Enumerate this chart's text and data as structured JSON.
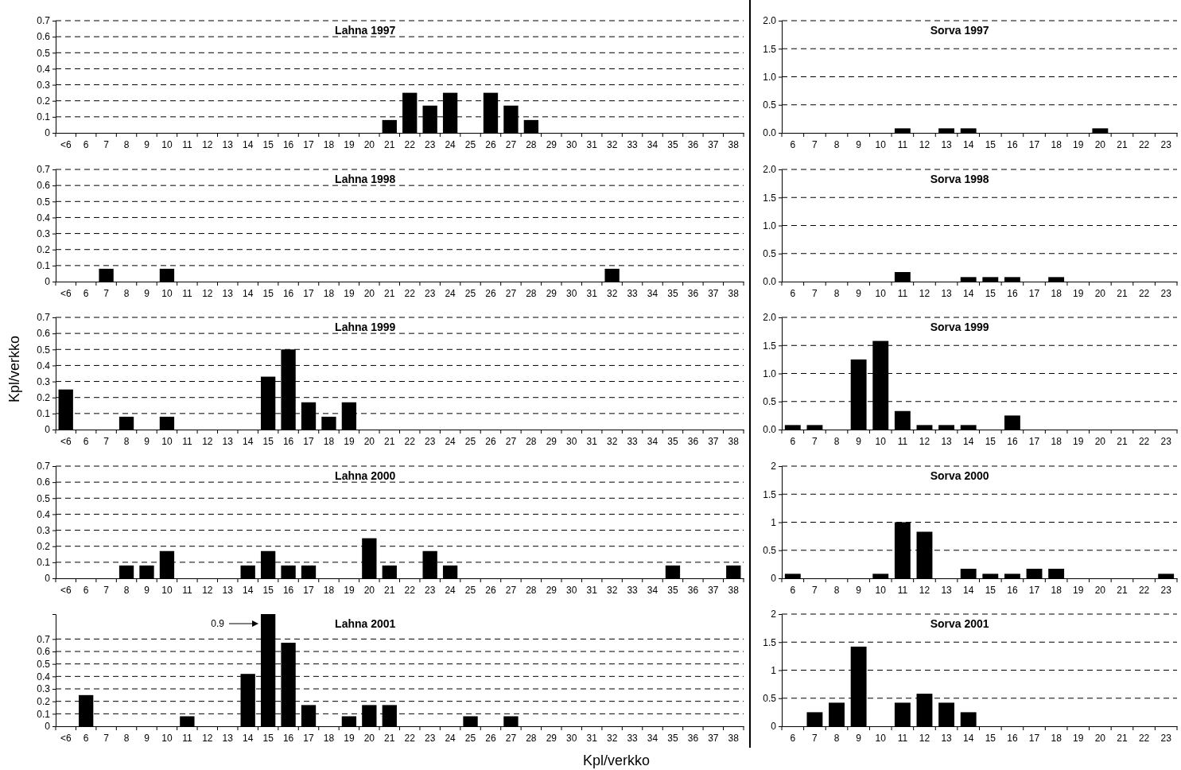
{
  "chart_data": [
    {
      "type": "bar",
      "title": "Lahna 1997",
      "categories": [
        "<6",
        "6",
        "7",
        "8",
        "9",
        "10",
        "11",
        "12",
        "13",
        "14",
        "15",
        "16",
        "17",
        "18",
        "19",
        "20",
        "21",
        "22",
        "23",
        "24",
        "25",
        "26",
        "27",
        "28",
        "29",
        "30",
        "31",
        "32",
        "33",
        "34",
        "35",
        "36",
        "37",
        "38"
      ],
      "values": [
        0,
        0,
        0,
        0,
        0,
        0,
        0,
        0,
        0,
        0,
        0,
        0,
        0,
        0,
        0,
        0,
        0.08,
        0.25,
        0.17,
        0.25,
        0,
        0.25,
        0.17,
        0.08,
        0,
        0,
        0,
        0,
        0,
        0,
        0,
        0,
        0,
        0
      ],
      "color": "#000000",
      "ylim": [
        0,
        0.7
      ],
      "yticks": [
        0,
        0.1,
        0.2,
        0.3,
        0.4,
        0.5,
        0.6,
        0.7
      ],
      "grid": "y"
    },
    {
      "type": "bar",
      "title": "Sorva 1997",
      "categories": [
        "6",
        "7",
        "8",
        "9",
        "10",
        "11",
        "12",
        "13",
        "14",
        "15",
        "16",
        "17",
        "18",
        "19",
        "20",
        "21",
        "22",
        "23"
      ],
      "values": [
        0,
        0,
        0,
        0,
        0,
        0.08,
        0,
        0.08,
        0.08,
        0,
        0,
        0,
        0,
        0,
        0.08,
        0,
        0,
        0
      ],
      "color": "#000000",
      "ylim": [
        0,
        2
      ],
      "yticks": [
        {
          "value": 0,
          "label": "0.0"
        },
        {
          "value": 0.5,
          "label": "0.5"
        },
        {
          "value": 1,
          "label": "1.0"
        },
        {
          "value": 1.5,
          "label": "1.5"
        },
        {
          "value": 2,
          "label": "2.0"
        }
      ],
      "grid": "y"
    },
    {
      "type": "bar",
      "title": "Lahna 1998",
      "categories": [
        "<6",
        "6",
        "7",
        "8",
        "9",
        "10",
        "11",
        "12",
        "13",
        "14",
        "15",
        "16",
        "17",
        "18",
        "19",
        "20",
        "21",
        "22",
        "23",
        "24",
        "25",
        "26",
        "27",
        "28",
        "29",
        "30",
        "31",
        "32",
        "33",
        "34",
        "35",
        "36",
        "37",
        "38"
      ],
      "values": [
        0,
        0,
        0.08,
        0,
        0,
        0.08,
        0,
        0,
        0,
        0,
        0,
        0,
        0,
        0,
        0,
        0,
        0,
        0,
        0,
        0,
        0,
        0,
        0,
        0,
        0,
        0,
        0,
        0.08,
        0,
        0,
        0,
        0,
        0,
        0
      ],
      "color": "#000000",
      "ylim": [
        0,
        0.7
      ],
      "yticks": [
        0,
        0.1,
        0.2,
        0.3,
        0.4,
        0.5,
        0.6,
        0.7
      ],
      "grid": "y"
    },
    {
      "type": "bar",
      "title": "Sorva 1998",
      "categories": [
        "6",
        "7",
        "8",
        "9",
        "10",
        "11",
        "12",
        "13",
        "14",
        "15",
        "16",
        "17",
        "18",
        "19",
        "20",
        "21",
        "22",
        "23"
      ],
      "values": [
        0,
        0,
        0,
        0,
        0,
        0.17,
        0,
        0,
        0.08,
        0.08,
        0.08,
        0,
        0.08,
        0,
        0,
        0,
        0,
        0
      ],
      "color": "#000000",
      "ylim": [
        0,
        2
      ],
      "yticks": [
        {
          "value": 0,
          "label": "0.0"
        },
        {
          "value": 0.5,
          "label": "0.5"
        },
        {
          "value": 1,
          "label": "1.0"
        },
        {
          "value": 1.5,
          "label": "1.5"
        },
        {
          "value": 2,
          "label": "2.0"
        }
      ],
      "grid": "y"
    },
    {
      "type": "bar",
      "title": "Lahna 1999",
      "ylabel": "Kpl/verkko",
      "categories": [
        "<6",
        "6",
        "7",
        "8",
        "9",
        "10",
        "11",
        "12",
        "13",
        "14",
        "15",
        "16",
        "17",
        "18",
        "19",
        "20",
        "21",
        "22",
        "23",
        "24",
        "25",
        "26",
        "27",
        "28",
        "29",
        "30",
        "31",
        "32",
        "33",
        "34",
        "35",
        "36",
        "37",
        "38"
      ],
      "values": [
        0.25,
        0,
        0,
        0.08,
        0,
        0.08,
        0,
        0,
        0,
        0,
        0.33,
        0.5,
        0.17,
        0.08,
        0.17,
        0,
        0,
        0,
        0,
        0,
        0,
        0,
        0,
        0,
        0,
        0,
        0,
        0,
        0,
        0,
        0,
        0,
        0,
        0
      ],
      "color": "#000000",
      "ylim": [
        0,
        0.7
      ],
      "yticks": [
        0,
        0.1,
        0.2,
        0.3,
        0.4,
        0.5,
        0.6,
        0.7
      ],
      "grid": "y"
    },
    {
      "type": "bar",
      "title": "Sorva 1999",
      "categories": [
        "6",
        "7",
        "8",
        "9",
        "10",
        "11",
        "12",
        "13",
        "14",
        "15",
        "16",
        "17",
        "18",
        "19",
        "20",
        "21",
        "22",
        "23"
      ],
      "values": [
        0.08,
        0.08,
        0,
        1.25,
        1.58,
        0.33,
        0.08,
        0.08,
        0.08,
        0,
        0.25,
        0,
        0,
        0,
        0,
        0,
        0,
        0
      ],
      "color": "#000000",
      "ylim": [
        0,
        2
      ],
      "yticks": [
        {
          "value": 0,
          "label": "0.0"
        },
        {
          "value": 0.5,
          "label": "0.5"
        },
        {
          "value": 1,
          "label": "1.0"
        },
        {
          "value": 1.5,
          "label": "1.5"
        },
        {
          "value": 2,
          "label": "2.0"
        }
      ],
      "grid": "y"
    },
    {
      "type": "bar",
      "title": "Lahna 2000",
      "categories": [
        "<6",
        "6",
        "7",
        "8",
        "9",
        "10",
        "11",
        "12",
        "13",
        "14",
        "15",
        "16",
        "17",
        "18",
        "19",
        "20",
        "21",
        "22",
        "23",
        "24",
        "25",
        "26",
        "27",
        "28",
        "29",
        "30",
        "31",
        "32",
        "33",
        "34",
        "35",
        "36",
        "37",
        "38"
      ],
      "values": [
        0,
        0,
        0,
        0.08,
        0.08,
        0.17,
        0,
        0,
        0,
        0.08,
        0.17,
        0.08,
        0.08,
        0,
        0,
        0.25,
        0.08,
        0,
        0.17,
        0.08,
        0,
        0,
        0,
        0,
        0,
        0,
        0,
        0,
        0,
        0,
        0.08,
        0,
        0,
        0.08
      ],
      "color": "#000000",
      "ylim": [
        0,
        0.7
      ],
      "yticks": [
        0,
        0.1,
        0.2,
        0.3,
        0.4,
        0.5,
        0.6,
        0.7
      ],
      "grid": "y"
    },
    {
      "type": "bar",
      "title": "Sorva 2000",
      "categories": [
        "6",
        "7",
        "8",
        "9",
        "10",
        "11",
        "12",
        "13",
        "14",
        "15",
        "16",
        "17",
        "18",
        "19",
        "20",
        "21",
        "22",
        "23"
      ],
      "values": [
        0.08,
        0,
        0,
        0,
        0.08,
        1.0,
        0.83,
        0,
        0.17,
        0.08,
        0.08,
        0.17,
        0.17,
        0,
        0,
        0,
        0,
        0.08
      ],
      "color": "#000000",
      "ylim": [
        0,
        2
      ],
      "yticks": [
        0,
        0.5,
        1,
        1.5,
        2
      ],
      "grid": "y"
    },
    {
      "type": "bar",
      "title": "Lahna 2001",
      "xlabel": "Kpl/verkko",
      "categories": [
        "<6",
        "6",
        "7",
        "8",
        "9",
        "10",
        "11",
        "12",
        "13",
        "14",
        "15",
        "16",
        "17",
        "18",
        "19",
        "20",
        "21",
        "22",
        "23",
        "24",
        "25",
        "26",
        "27",
        "28",
        "29",
        "30",
        "31",
        "32",
        "33",
        "34",
        "35",
        "36",
        "37",
        "38"
      ],
      "values": [
        0,
        0.25,
        0,
        0,
        0,
        0,
        0.08,
        0,
        0,
        0.42,
        0.9,
        0.67,
        0.17,
        0,
        0.08,
        0.17,
        0.17,
        0,
        0,
        0,
        0.08,
        0,
        0.08,
        0,
        0,
        0,
        0,
        0,
        0,
        0,
        0,
        0,
        0,
        0
      ],
      "value_labels": [
        null,
        null,
        null,
        null,
        null,
        null,
        null,
        null,
        null,
        null,
        "0.9",
        null,
        null,
        null,
        null,
        null,
        null,
        null,
        null,
        null,
        null,
        null,
        null,
        null,
        null,
        null,
        null,
        null,
        null,
        null,
        null,
        null,
        null,
        null
      ],
      "color": "#000000",
      "ylim": [
        0,
        0.9
      ],
      "yticks": [
        0,
        0.1,
        0.2,
        0.3,
        0.4,
        0.5,
        0.6,
        0.7
      ],
      "grid": "y"
    },
    {
      "type": "bar",
      "title": "Sorva 2001",
      "categories": [
        "6",
        "7",
        "8",
        "9",
        "10",
        "11",
        "12",
        "13",
        "14",
        "15",
        "16",
        "17",
        "18",
        "19",
        "20",
        "21",
        "22",
        "23"
      ],
      "values": [
        0,
        0.25,
        0.42,
        1.42,
        0,
        0.42,
        0.58,
        0.42,
        0.25,
        0,
        0,
        0,
        0,
        0,
        0,
        0,
        0,
        0
      ],
      "color": "#000000",
      "ylim": [
        0,
        2
      ],
      "yticks": [
        0,
        0.5,
        1,
        1.5,
        2
      ],
      "grid": "y"
    }
  ]
}
